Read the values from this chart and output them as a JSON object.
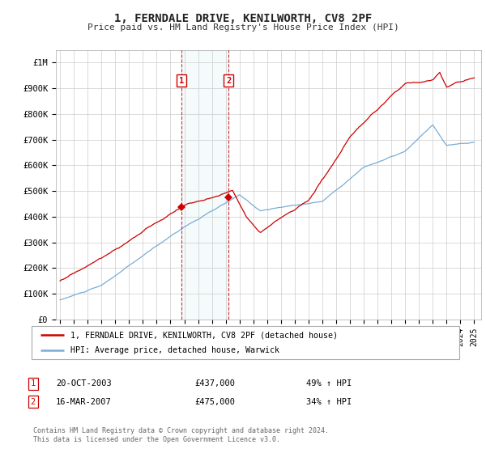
{
  "title": "1, FERNDALE DRIVE, KENILWORTH, CV8 2PF",
  "subtitle": "Price paid vs. HM Land Registry's House Price Index (HPI)",
  "red_label": "1, FERNDALE DRIVE, KENILWORTH, CV8 2PF (detached house)",
  "blue_label": "HPI: Average price, detached house, Warwick",
  "sale1_date": "20-OCT-2003",
  "sale1_price": "£437,000",
  "sale1_hpi": "49% ↑ HPI",
  "sale1_year": 2003.8,
  "sale2_date": "16-MAR-2007",
  "sale2_price": "£475,000",
  "sale2_hpi": "34% ↑ HPI",
  "sale2_year": 2007.2,
  "footer": "Contains HM Land Registry data © Crown copyright and database right 2024.\nThis data is licensed under the Open Government Licence v3.0.",
  "ylim": [
    0,
    1050000
  ],
  "yticks": [
    0,
    100000,
    200000,
    300000,
    400000,
    500000,
    600000,
    700000,
    800000,
    900000,
    1000000
  ],
  "ytick_labels": [
    "£0",
    "£100K",
    "£200K",
    "£300K",
    "£400K",
    "£500K",
    "£600K",
    "£700K",
    "£800K",
    "£900K",
    "£1M"
  ],
  "xlim_start": 1994.7,
  "xlim_end": 2025.5,
  "bg_color": "#ffffff",
  "grid_color": "#cccccc",
  "red_color": "#cc0000",
  "blue_color": "#7aadd4",
  "marker_box_color": "#cc0000",
  "sale1_dot_value": 437000,
  "sale2_dot_value": 475000
}
